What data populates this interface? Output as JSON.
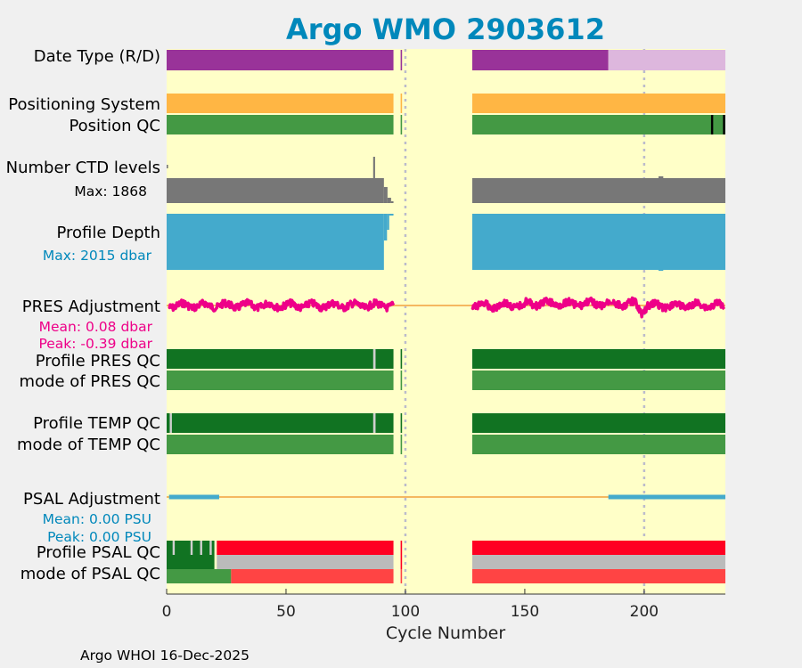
{
  "chart_data": {
    "type": "status-timeline",
    "title": "Argo WMO 2903612",
    "xlabel": "Cycle Number",
    "xlim": [
      0,
      234
    ],
    "xticks": [
      0,
      50,
      100,
      150,
      200
    ],
    "footer": "Argo WHOI 16-Dec-2025",
    "colors": {
      "title": "#0088bb",
      "plot_bg": "#ffffc8",
      "gap_bg": "#ffffc8",
      "figure_bg": "#f0f0f0",
      "realtime": "#993399",
      "delayed": "#ddb7dd",
      "positioning": "#ffb644",
      "qc_good": "#449944",
      "qc_good_dark": "#117322",
      "qc_bad": "#000000",
      "qc_red": "#ff0022",
      "qc_red_light": "#ff4444",
      "qc_gray": "#bbbbbb",
      "ctd": "#777777",
      "depth": "#44aacc",
      "pres": "#ee0088",
      "psal": "#44aacc",
      "zero_line": "#f5b860",
      "dotted": "#bbbbcc"
    },
    "gap_range": [
      98,
      128
    ],
    "dotted_cycles": [
      100,
      200
    ],
    "row_labels": {
      "date_type": "Date Type (R/D)",
      "positioning": "Positioning System",
      "position_qc": "Position QC",
      "ctd_levels": "Number CTD levels",
      "ctd_max": "Max: 1868",
      "profile_depth": "Profile Depth",
      "depth_max": "Max: 2015 dbar",
      "pres_adj": "PRES Adjustment",
      "pres_mean": "Mean: 0.08 dbar",
      "pres_peak": "Peak: -0.39 dbar",
      "profile_pres_qc": "Profile PRES QC",
      "mode_pres_qc": "mode of PRES QC",
      "profile_temp_qc": "Profile TEMP QC",
      "mode_temp_qc": "mode of TEMP QC",
      "psal_adj": "PSAL Adjustment",
      "psal_mean": "Mean: 0.00 PSU",
      "psal_peak": "Peak: 0.00 PSU",
      "profile_psal_qc": "Profile PSAL QC",
      "mode_psal_qc": "mode of PSAL QC"
    },
    "data_ranges": {
      "segment_1": [
        0,
        95
      ],
      "isolated_cycle": 98,
      "segment_2": [
        128,
        234
      ],
      "realtime_until": 185,
      "delayed_from": 185
    },
    "ctd_levels": {
      "max": 1868,
      "typical": 1868,
      "spikes": [
        {
          "cycle": 87,
          "levels": 1868
        }
      ],
      "low_cycles": [
        91,
        92,
        93,
        94
      ]
    },
    "profile_depth_dbar": {
      "max": 2015,
      "typical": 2000,
      "shallow_cycles": [
        92,
        93,
        94,
        95
      ]
    },
    "pres_adjustment_dbar": {
      "mean": 0.08,
      "peak": -0.39,
      "series_note": "noisy trace around zero across both segments"
    },
    "psal_adjustment_psu": {
      "mean": 0.0,
      "peak": 0.0,
      "flagged_ranges": [
        [
          1,
          22
        ],
        [
          185,
          234
        ]
      ]
    },
    "psal_qc": {
      "profile_green_until": 20,
      "profile_red_from": 21,
      "mode_green_until": 27,
      "mode_red_from": 27
    },
    "position_qc_bad_cycles": [
      228,
      233
    ]
  }
}
